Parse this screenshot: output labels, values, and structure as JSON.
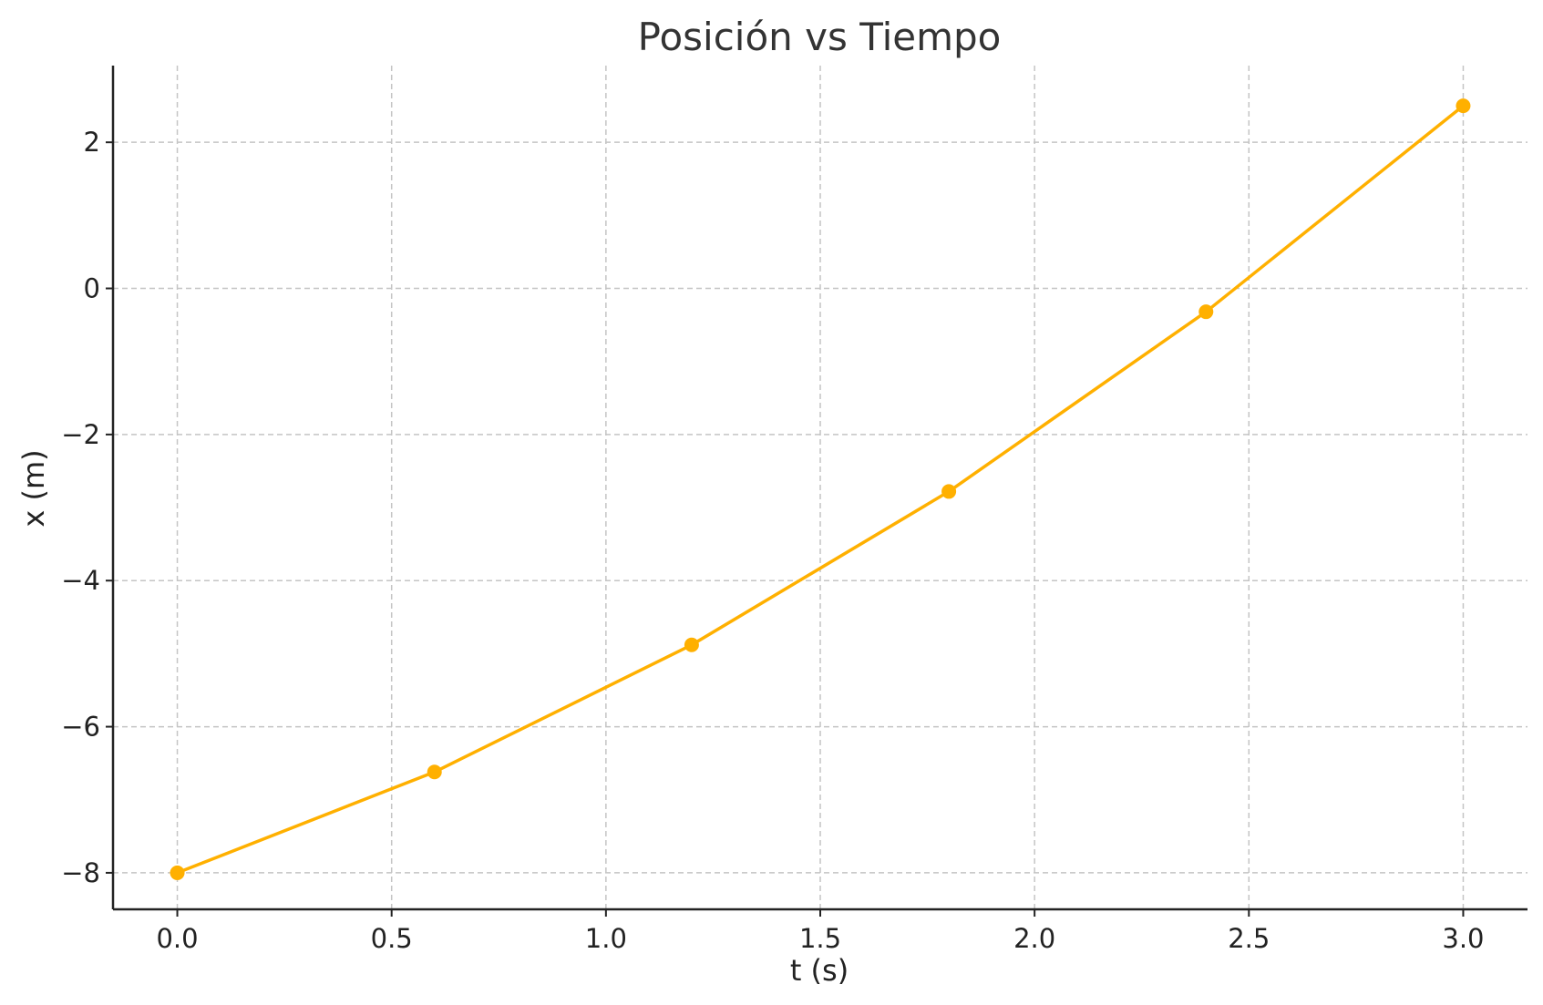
{
  "chart_data": {
    "type": "line",
    "title": "Posición vs Tiempo",
    "xlabel": "t (s)",
    "ylabel": "x (m)",
    "xlim": [
      -0.15,
      3.15
    ],
    "ylim": [
      -8.5,
      3.05
    ],
    "xticks": [
      0.0,
      0.5,
      1.0,
      1.5,
      2.0,
      2.5,
      3.0
    ],
    "xtick_labels": [
      "0.0",
      "0.5",
      "1.0",
      "1.5",
      "2.0",
      "2.5",
      "3.0"
    ],
    "yticks": [
      -8,
      -6,
      -4,
      -2,
      0,
      2
    ],
    "ytick_labels": [
      "−8",
      "−6",
      "−4",
      "−2",
      "0",
      "2"
    ],
    "grid": true,
    "series": [
      {
        "color": "#FFB000",
        "x": [
          0.0,
          0.6,
          1.2,
          1.8,
          2.4,
          3.0
        ],
        "y": [
          -8.0,
          -6.62,
          -4.88,
          -2.78,
          -0.32,
          2.5
        ]
      }
    ]
  }
}
